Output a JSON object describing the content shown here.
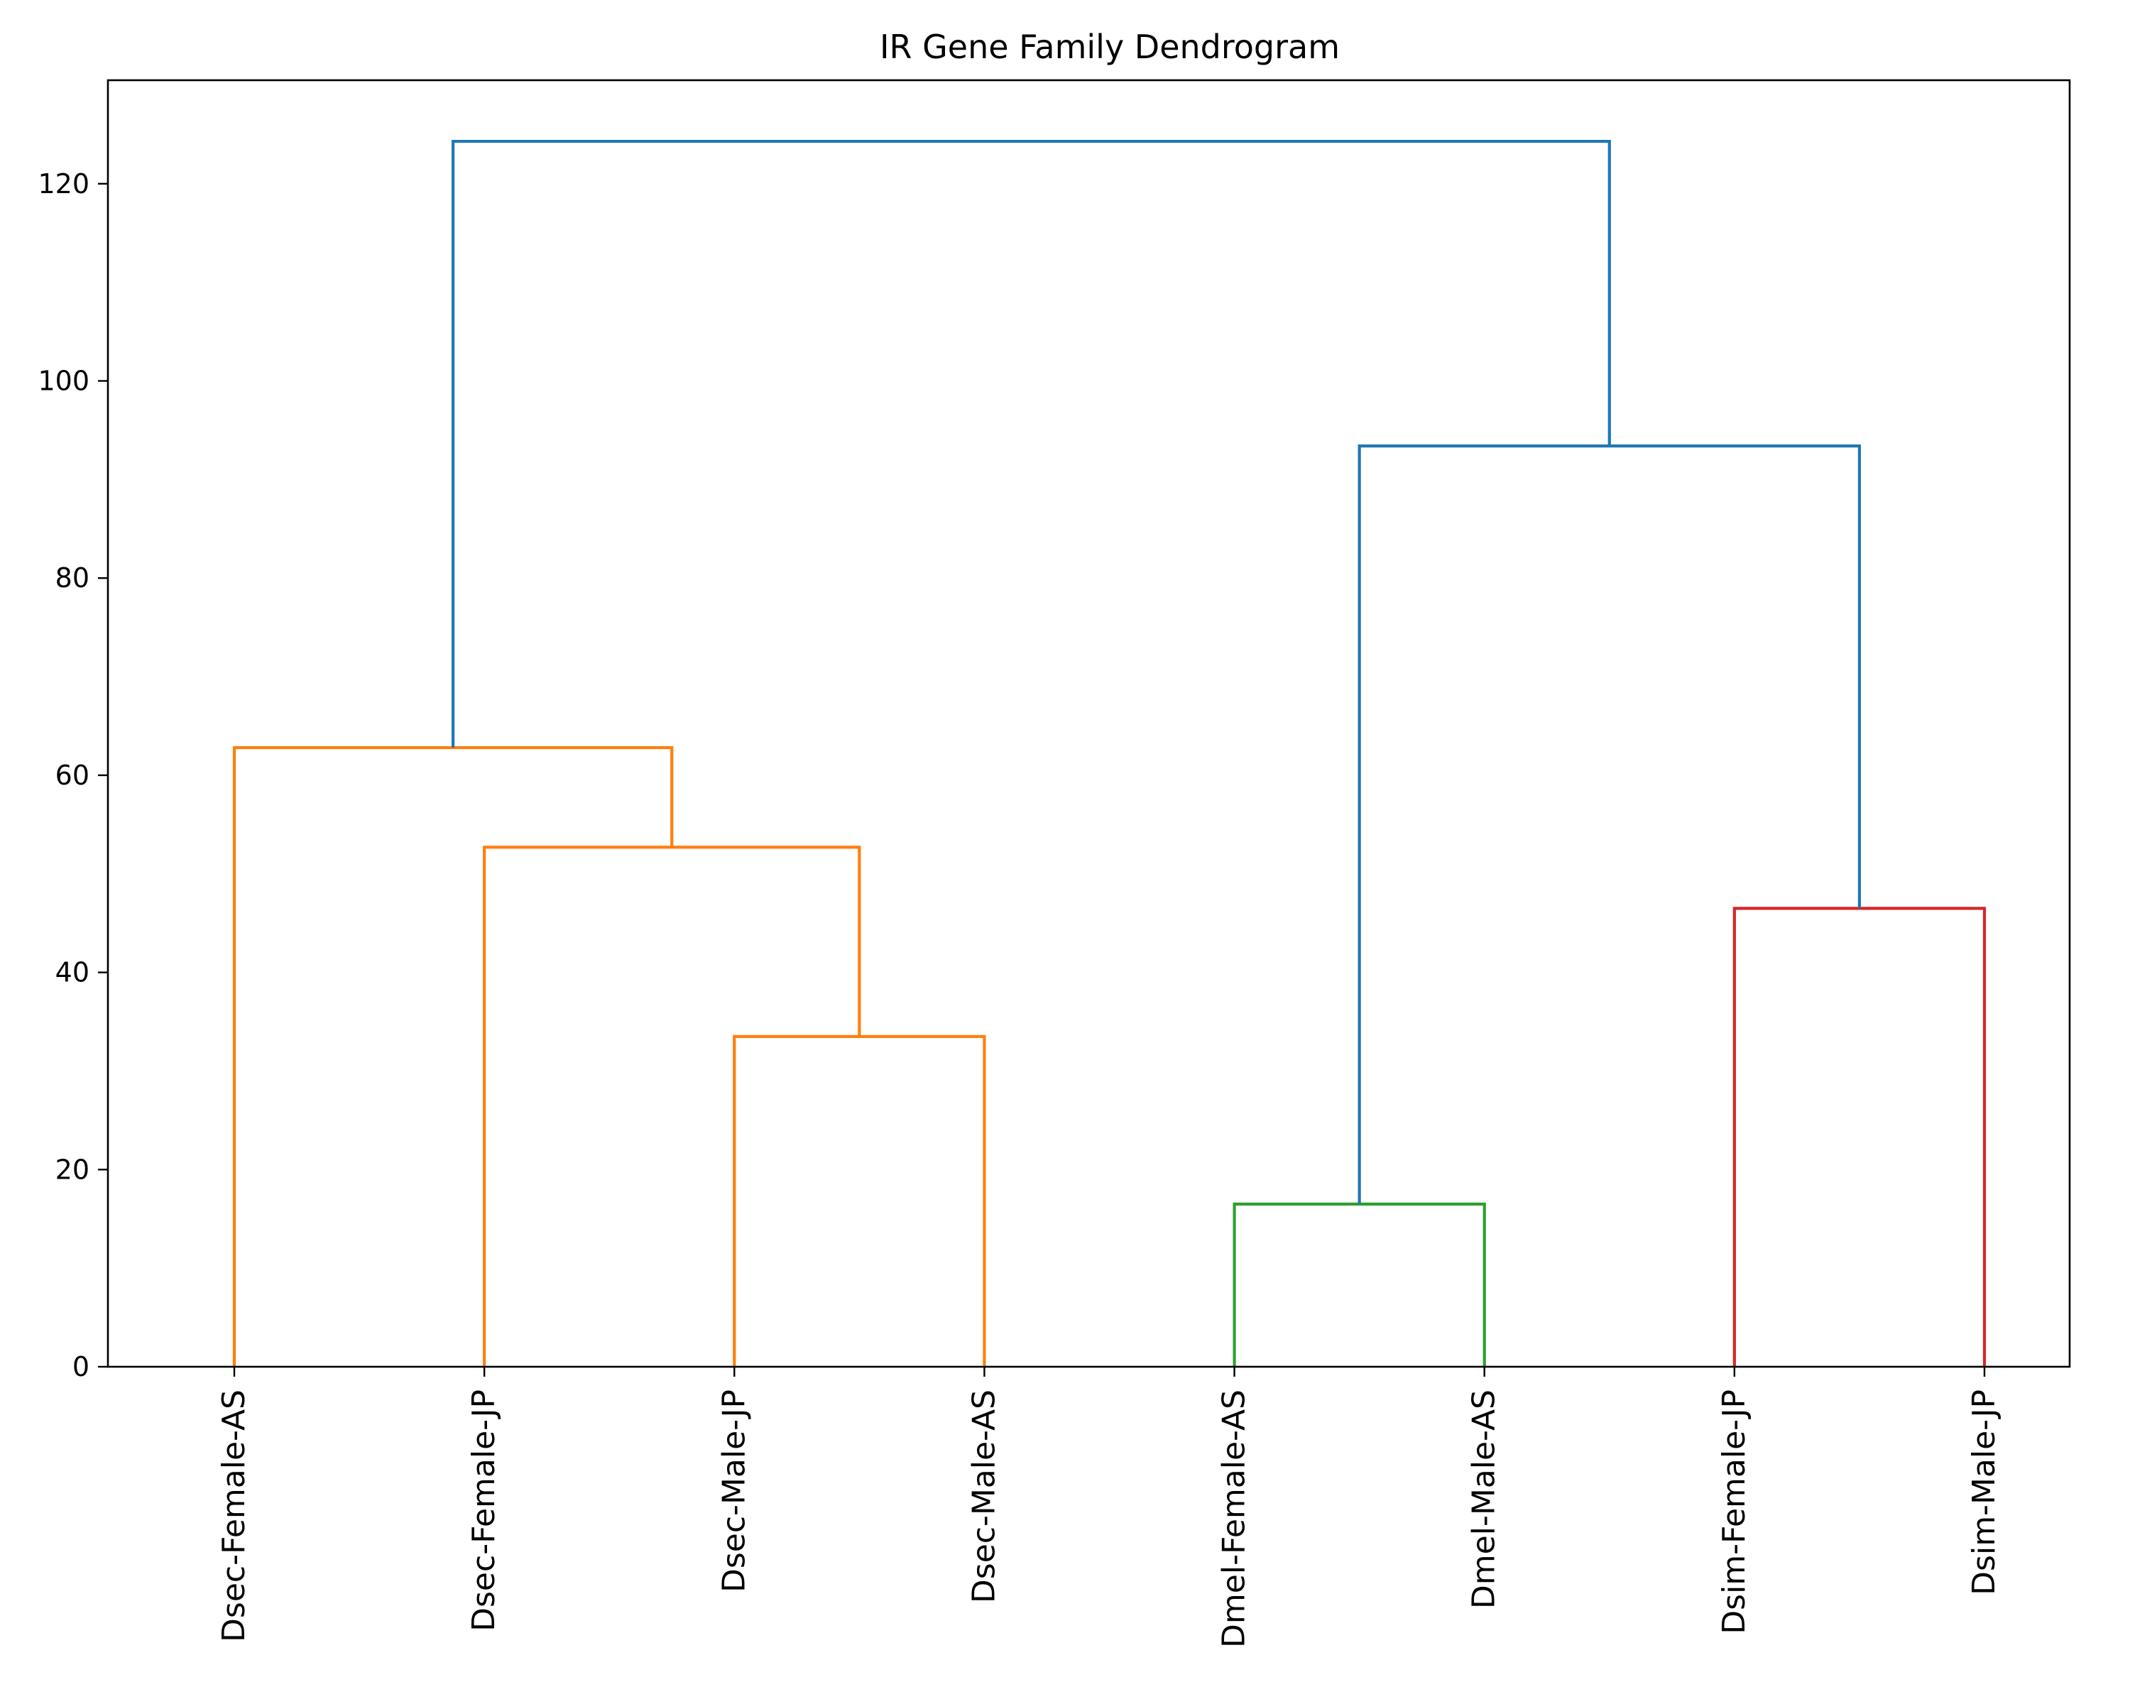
{
  "chart_data": {
    "type": "dendrogram",
    "title": "IR Gene Family Dendrogram",
    "xlabel": "",
    "ylabel": "",
    "ylim": [
      0,
      130.5
    ],
    "yticks": [
      0,
      20,
      40,
      60,
      80,
      100,
      120
    ],
    "leaves": [
      "Dsec-Female-AS",
      "Dsec-Female-JP",
      "Dsec-Male-JP",
      "Dsec-Male-AS",
      "Dmel-Female-AS",
      "Dmel-Male-AS",
      "Dsim-Female-JP",
      "Dsim-Male-JP"
    ],
    "merges": [
      {
        "left": "Dmel-Female-AS",
        "right": "Dmel-Male-AS",
        "height": 16.5,
        "color": "#2ca02c"
      },
      {
        "left": "Dsec-Male-JP",
        "right": "Dsec-Male-AS",
        "height": 33.5,
        "color": "#ff7f0e"
      },
      {
        "left": "Dsim-Female-JP",
        "right": "Dsim-Male-JP",
        "height": 46.5,
        "color": "#d62728"
      },
      {
        "left": "Dsec-Female-JP",
        "right": "cluster(Dsec-Male-JP,Dsec-Male-AS)",
        "height": 52.7,
        "color": "#ff7f0e"
      },
      {
        "left": "Dsec-Female-AS",
        "right": "cluster(Dsec-Female-JP,Dsec-Male-JP,Dsec-Male-AS)",
        "height": 62.8,
        "color": "#ff7f0e"
      },
      {
        "left": "cluster(Dmel-Female-AS,Dmel-Male-AS)",
        "right": "cluster(Dsim-Female-JP,Dsim-Male-JP)",
        "height": 93.4,
        "color": "#1f77b4"
      },
      {
        "left": "cluster(Dsec-*)",
        "right": "cluster(Dmel-*,Dsim-*)",
        "height": 124.3,
        "color": "#1f77b4"
      }
    ],
    "grid": false,
    "legend": "none"
  }
}
